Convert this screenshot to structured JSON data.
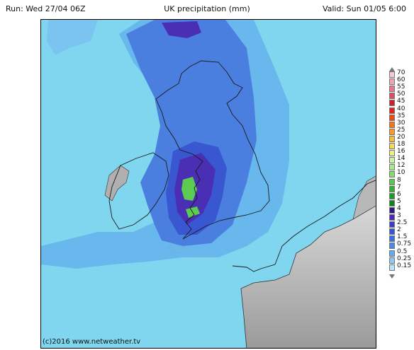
{
  "header": {
    "run": "Run: Wed 27/04 06Z",
    "title": "UK precipitation (mm)",
    "valid": "Valid: Sun 01/05 6:00"
  },
  "map": {
    "credit": "(c)2016 www.netweather.tv",
    "land_color": "#a6a6a6",
    "sea_color": "#7fd6ee"
  },
  "legend": {
    "items": [
      {
        "label": "70",
        "color": "#f4c9d6"
      },
      {
        "label": "60",
        "color": "#eea2b6"
      },
      {
        "label": "55",
        "color": "#e6778f"
      },
      {
        "label": "50",
        "color": "#de4d63"
      },
      {
        "label": "45",
        "color": "#cf1f2c"
      },
      {
        "label": "40",
        "color": "#e0231b"
      },
      {
        "label": "35",
        "color": "#ee4a12"
      },
      {
        "label": "30",
        "color": "#f67514"
      },
      {
        "label": "25",
        "color": "#f99a24"
      },
      {
        "label": "20",
        "color": "#f7bb3a"
      },
      {
        "label": "18",
        "color": "#f2d85a"
      },
      {
        "label": "16",
        "color": "#e9ee8e"
      },
      {
        "label": "14",
        "color": "#cbf0a8"
      },
      {
        "label": "12",
        "color": "#a8e98e"
      },
      {
        "label": "10",
        "color": "#82db6d"
      },
      {
        "label": "8",
        "color": "#57c94d"
      },
      {
        "label": "7",
        "color": "#34b035"
      },
      {
        "label": "6",
        "color": "#1e9a2a"
      },
      {
        "label": "5",
        "color": "#118022"
      },
      {
        "label": "4",
        "color": "#2a1a8a"
      },
      {
        "label": "3",
        "color": "#4b2cb0"
      },
      {
        "label": "2.5",
        "color": "#3b3ec4"
      },
      {
        "label": "2",
        "color": "#3357d4"
      },
      {
        "label": "1.5",
        "color": "#3a6ee0"
      },
      {
        "label": "0.75",
        "color": "#4a8ae8"
      },
      {
        "label": "0.5",
        "color": "#67a8ee"
      },
      {
        "label": "0.25",
        "color": "#8cc8f2"
      },
      {
        "label": "0.15",
        "color": "#b9e4f7"
      }
    ]
  }
}
